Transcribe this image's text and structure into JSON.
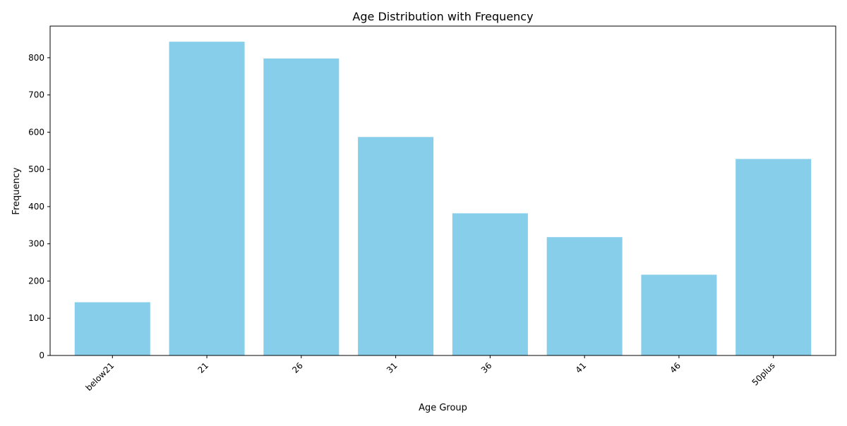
{
  "chart_data": {
    "type": "bar",
    "title": "Age Distribution with Frequency",
    "xlabel": "Age Group",
    "ylabel": "Frequency",
    "categories": [
      "below21",
      "21",
      "26",
      "31",
      "36",
      "41",
      "46",
      "50plus"
    ],
    "values": [
      143,
      843,
      798,
      587,
      382,
      318,
      217,
      528
    ],
    "ylim": [
      0,
      885
    ],
    "yticks": [
      0,
      100,
      200,
      300,
      400,
      500,
      600,
      700,
      800
    ],
    "grid": false,
    "legend": "none",
    "bar_color": "#87CEEB"
  }
}
